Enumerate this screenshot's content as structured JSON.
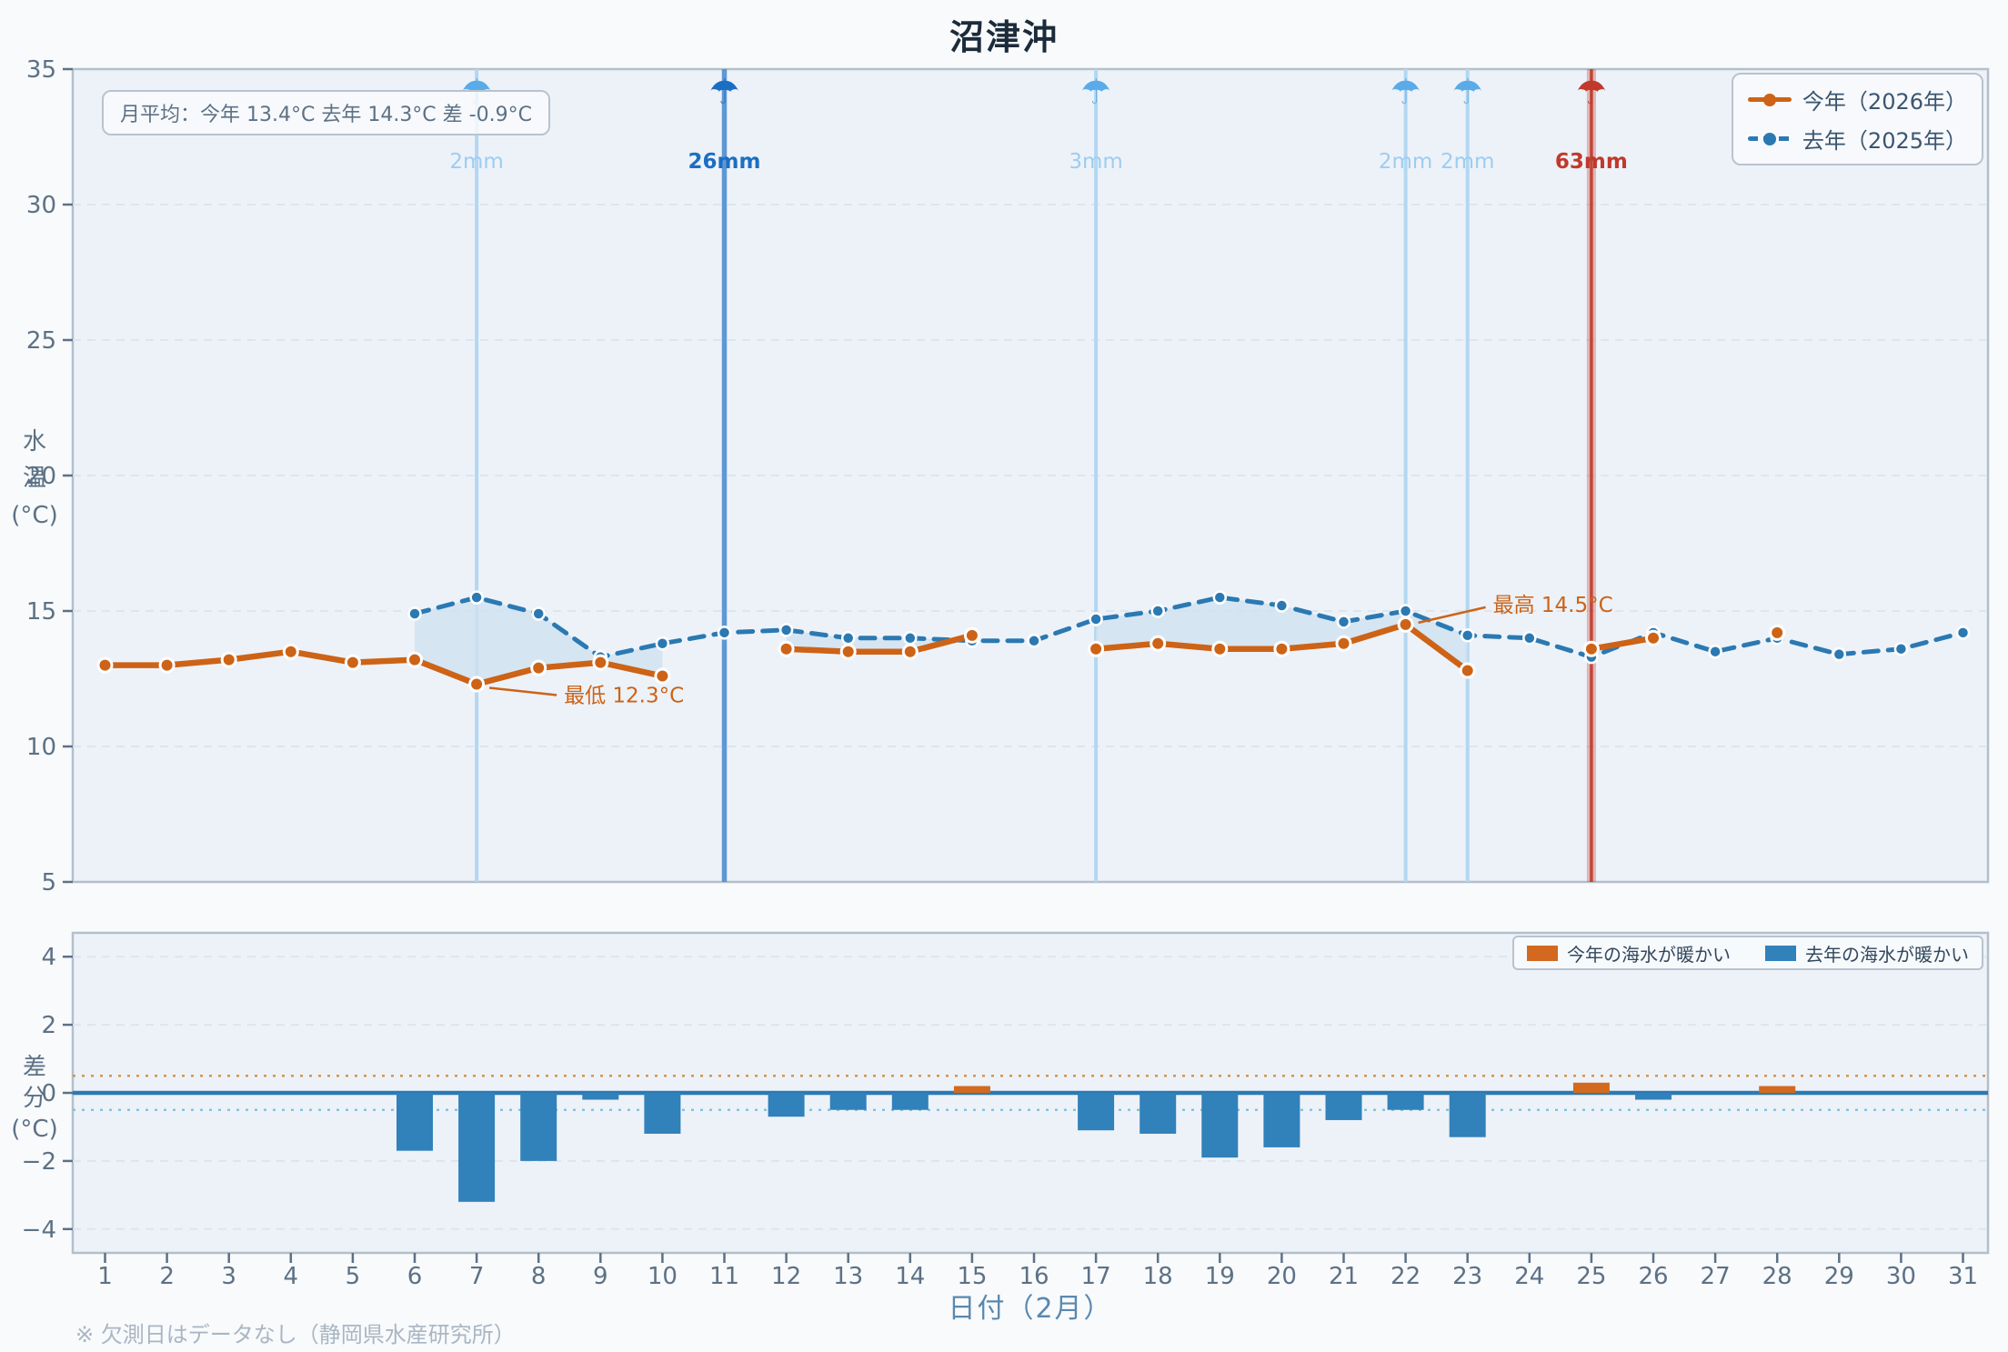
{
  "title": "沼津沖",
  "stats_box": {
    "text": "月平均：今年 13.4°C  去年 14.3°C  差 -0.9°C"
  },
  "footnote": "※ 欠測日はデータなし（静岡県水産研究所）",
  "colors": {
    "background": "#f8fafc",
    "plot_background": "#edf2f9",
    "border": "#b4bfcb",
    "grid": "#dde5ef",
    "tick_text": "#5d7185",
    "fill_between": "#cfe1f0",
    "rain_light_line": "#b3d7f2",
    "rain_light_icon": "#5aabe8",
    "rain_light_label": "#9dcdf0",
    "rain_heavy": "#1c6ec2",
    "rain_heavy_line": "#4f8fd0",
    "rain_storm": "#c0392b",
    "warm_threshold": "#e0913c",
    "cold_threshold": "#86c2dc",
    "zero_line": "#2b79b2",
    "annotation": "#cd6316"
  },
  "chart_data": [
    {
      "type": "line",
      "title": "水温",
      "ylabel": "水温(°C)",
      "ylabel_stacked": [
        "水",
        "温",
        "(°C)"
      ],
      "ylim": [
        5,
        35
      ],
      "yticks": [
        5,
        10,
        15,
        20,
        25,
        30,
        35
      ],
      "grid_lines": [
        10,
        15,
        20,
        25,
        30
      ],
      "xlim": [
        1,
        31
      ],
      "series": [
        {
          "name": "今年（2026年）",
          "color": "#cd6316",
          "style": "solid",
          "values": [
            13.0,
            13.0,
            13.2,
            13.5,
            13.1,
            13.2,
            12.3,
            12.9,
            13.1,
            12.6,
            null,
            13.6,
            13.5,
            13.5,
            14.1,
            null,
            13.6,
            13.8,
            13.6,
            13.6,
            13.8,
            14.5,
            12.8,
            null,
            13.6,
            14.0,
            null,
            14.2,
            null,
            null,
            null
          ]
        },
        {
          "name": "去年（2025年）",
          "color": "#2b79b2",
          "style": "dashed",
          "values": [
            null,
            null,
            null,
            null,
            null,
            14.9,
            15.5,
            14.9,
            13.3,
            13.8,
            14.2,
            14.3,
            14.0,
            14.0,
            13.9,
            13.9,
            14.7,
            15.0,
            15.5,
            15.2,
            14.6,
            15.0,
            14.1,
            14.0,
            13.3,
            14.2,
            13.5,
            14.0,
            13.4,
            13.6,
            14.2
          ]
        }
      ],
      "annotations": [
        {
          "text": "最低 12.3°C",
          "day": 7,
          "value": 12.3,
          "placement": "below-right"
        },
        {
          "text": "最高 14.5°C",
          "day": 22,
          "value": 14.5,
          "placement": "above-right"
        }
      ],
      "rain": [
        {
          "day": 7,
          "label": "2mm",
          "level": "light"
        },
        {
          "day": 11,
          "label": "26mm",
          "level": "heavy"
        },
        {
          "day": 17,
          "label": "3mm",
          "level": "light"
        },
        {
          "day": 22,
          "label": "2mm",
          "level": "light"
        },
        {
          "day": 23,
          "label": "2mm",
          "level": "light"
        },
        {
          "day": 25,
          "label": "63mm",
          "level": "storm"
        }
      ]
    },
    {
      "type": "bar",
      "ylabel": "差分(°C)",
      "ylabel_stacked": [
        "差",
        "分",
        "(°C)"
      ],
      "xlabel": "日付（2月）",
      "ylim": [
        -4.7,
        4.7
      ],
      "yticks": [
        -4,
        -2,
        0,
        2,
        4
      ],
      "grid_lines": [
        -4,
        -2,
        2,
        4
      ],
      "thresholds": {
        "warm": 0.5,
        "cold": -0.5
      },
      "legend": [
        {
          "label": "今年の海水が暖かい",
          "color": "#d2691e"
        },
        {
          "label": "去年の海水が暖かい",
          "color": "#3181ba"
        }
      ],
      "values": [
        null,
        null,
        null,
        null,
        null,
        -1.7,
        -3.2,
        -2.0,
        -0.2,
        -1.2,
        null,
        -0.7,
        -0.5,
        -0.5,
        0.2,
        null,
        -1.1,
        -1.2,
        -1.9,
        -1.6,
        -0.8,
        -0.5,
        -1.3,
        null,
        0.3,
        -0.2,
        null,
        0.2,
        null,
        null,
        null
      ]
    }
  ]
}
